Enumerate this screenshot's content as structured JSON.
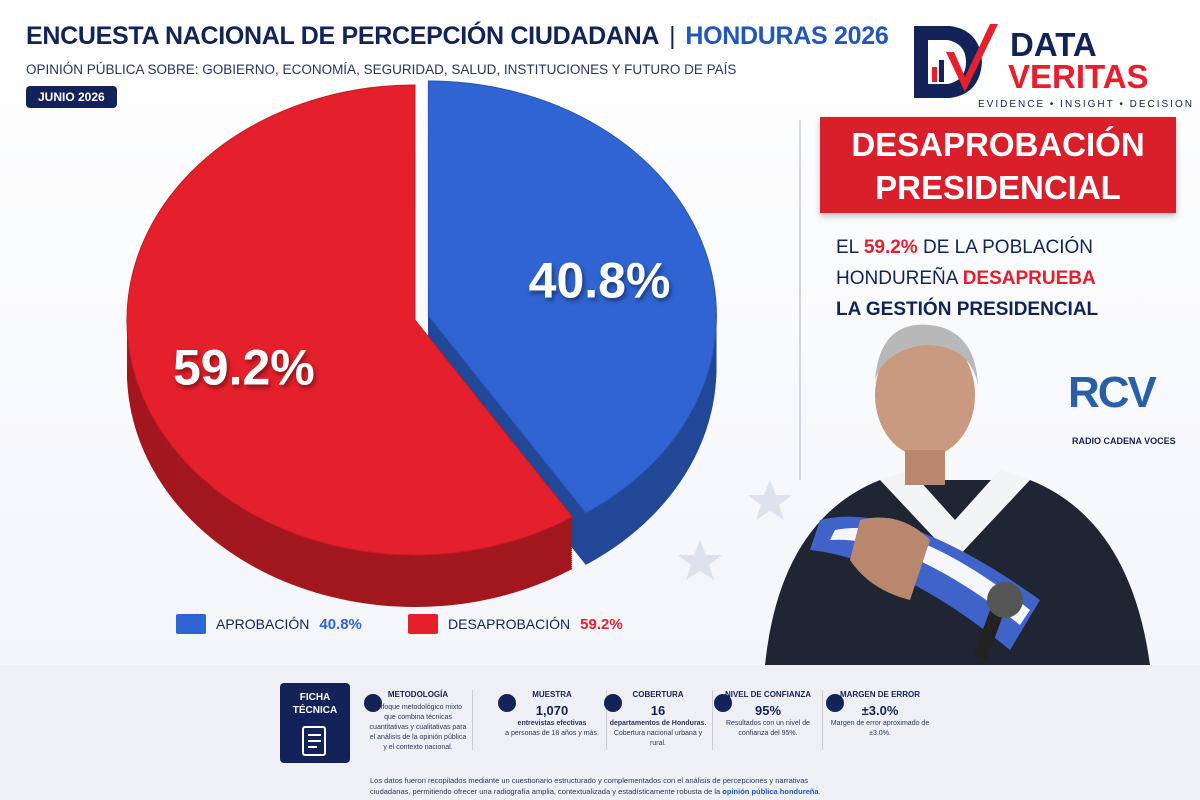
{
  "header": {
    "title": "ENCUESTA NACIONAL DE PERCEPCIÓN CIUDADANA",
    "highlight": "HONDURAS 2026",
    "subtitle": "OPINIÓN PÚBLICA SOBRE: GOBIERNO, ECONOMÍA, SEGURIDAD, SALUD, INSTITUCIONES Y FUTURO DE PAÍS",
    "date": "JUNIO 2026"
  },
  "logo": {
    "line1": "DATA",
    "line2": "VERITAS",
    "tagline": "EVIDENCE • INSIGHT • DECISION"
  },
  "chart_data": {
    "type": "pie",
    "categories": [
      "APROBACIÓN",
      "DESAPROBACIÓN"
    ],
    "values": [
      40.8,
      59.2
    ],
    "value_labels": [
      "40.8%",
      "59.2%"
    ],
    "colors": [
      "#2f64d2",
      "#e3202b"
    ]
  },
  "callout": {
    "title_line1": "DESAPROBACIÓN",
    "title_line2": "PRESIDENCIAL",
    "text_a": "EL ",
    "text_b": "59.2%",
    "text_c": " DE LA POBLACIÓN",
    "text_d": "HONDUREÑA ",
    "text_e": "DESAPRUEBA",
    "text_f": "LA GESTIÓN PRESIDENCIAL"
  },
  "broadcaster": {
    "logo": "RCV",
    "name": "RADIO CADENA VOCES"
  },
  "ficha": {
    "label_line1": "FICHA",
    "label_line2": "TÉCNICA",
    "items": [
      {
        "title": "METODOLOGÍA",
        "text": "Enfoque metodológico mixto que combina técnicas cuantitativas y cualitativas para el análisis de la opinión pública y el contexto nacional."
      },
      {
        "title": "MUESTRA",
        "figure": "1,070",
        "bold": "entrevistas efectivas",
        "text": "a personas de 18 años y más."
      },
      {
        "title": "COBERTURA",
        "figure": "16",
        "bold": "departamentos de Honduras.",
        "text": "Cobertura nacional urbana y rural."
      },
      {
        "title": "NIVEL DE CONFIANZA",
        "figure": "95%",
        "text": "Resultados con un nivel de confianza del 95%."
      },
      {
        "title": "MARGEN DE ERROR",
        "figure": "±3.0%",
        "text": "Margen de error aproximado de ±3.0%."
      }
    ]
  },
  "footer": {
    "text": "Los datos fueron recopilados mediante un cuestionario estructurado y complementados con el análisis de percepciones y narrativas ciudadanas, permitiendo ofrecer una radiografía amplia, contextualizada y estadísticamente robusta de la ",
    "bold": "opinión pública hondureña",
    "end": "."
  }
}
